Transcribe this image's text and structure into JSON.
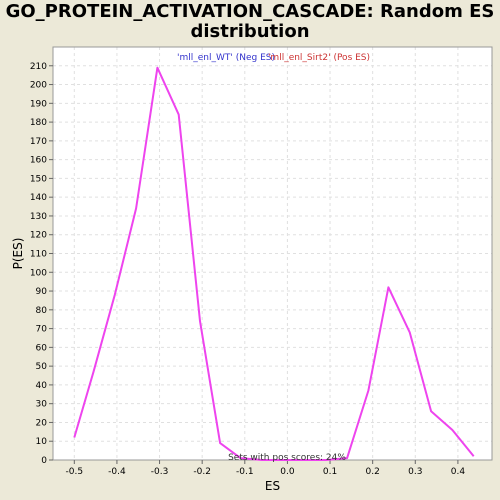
{
  "chart_data": {
    "type": "line",
    "title": "GO_PROTEIN_ACTIVATION_CASCADE: Random ES distribution",
    "xlabel": "ES",
    "ylabel": "P(ES)",
    "xlim": [
      -0.55,
      0.48
    ],
    "ylim": [
      0,
      220
    ],
    "xticks": [
      -0.5,
      -0.4,
      -0.3,
      -0.2,
      -0.1,
      0.0,
      0.1,
      0.2,
      0.3,
      0.4
    ],
    "xtick_labels": [
      "-0.5",
      "-0.4",
      "-0.3",
      "-0.2",
      "-0.1",
      "0.0",
      "0.1",
      "0.2",
      "0.3",
      "0.4"
    ],
    "yticks": [
      0,
      10,
      20,
      30,
      40,
      50,
      60,
      70,
      80,
      90,
      100,
      110,
      120,
      130,
      140,
      150,
      160,
      170,
      180,
      190,
      200,
      210
    ],
    "grid": true,
    "legend": {
      "placement": "top-center",
      "entries": [
        {
          "label": "'mll_enl_WT' (Neg ES)",
          "color": "#3333cc"
        },
        {
          "label": "'mll_enl_Sirt2' (Pos ES)",
          "color": "#cc3333"
        }
      ]
    },
    "annotation": "Sets with pos scores: 24%",
    "series": [
      {
        "color": "#ee44ee",
        "x": [
          -0.5,
          -0.455,
          -0.405,
          -0.355,
          -0.305,
          -0.255,
          -0.205,
          -0.158,
          -0.11,
          -0.06,
          -0.01,
          0.04,
          0.09,
          0.14,
          0.19,
          0.237,
          0.287,
          0.337,
          0.387,
          0.437
        ],
        "y": [
          12,
          47,
          88,
          134,
          209,
          184,
          74,
          9,
          1,
          0,
          0,
          0,
          0,
          1,
          37,
          92,
          68,
          26,
          16,
          2
        ]
      }
    ]
  },
  "colors": {
    "background": "#ece9d8",
    "plot_background": "#ffffff",
    "grid": "#e0e0e0",
    "line": "#ee44ee"
  }
}
